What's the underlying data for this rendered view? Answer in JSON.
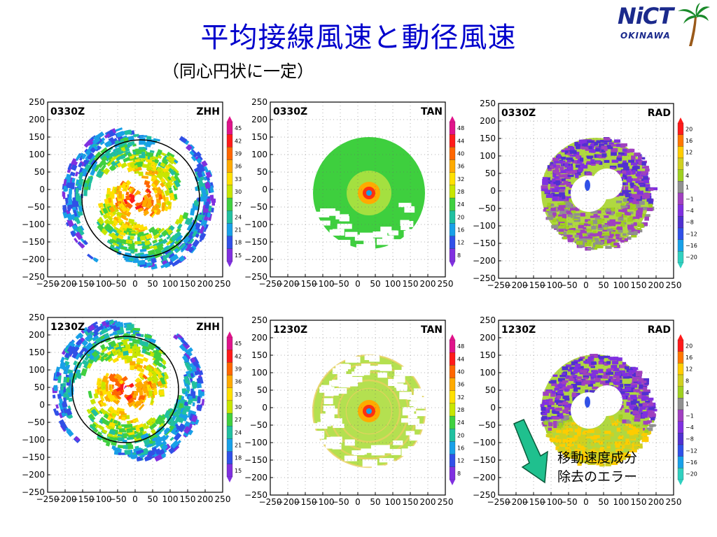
{
  "title": "平均接線風速と動径風速",
  "subtitle": "（同心円状に一定）",
  "logo": {
    "main": "NiCT",
    "sub": "OKINAWA"
  },
  "annotation": {
    "line1": "移動速度成分",
    "line2": "除去のエラー"
  },
  "colors": {
    "title": "#0000cc",
    "arrow_fill": "#1fc08e",
    "arrow_stroke": "#0a5a3a",
    "logo": "#1b2a8c",
    "palm": "#1a8a2a",
    "trunk": "#9a5a1a"
  },
  "axis": {
    "y_ticks": [
      "250",
      "200",
      "150",
      "100",
      "50",
      "0",
      "−50",
      "−100",
      "−150",
      "−200",
      "−250"
    ],
    "x_ticks": [
      "−250",
      "−200",
      "−150",
      "−100",
      "−50",
      "0",
      "50",
      "100",
      "150",
      "200",
      "250"
    ]
  },
  "colorbars": {
    "ZHH": [
      "45",
      "42",
      "39",
      "36",
      "33",
      "30",
      "27",
      "24",
      "21",
      "18",
      "15"
    ],
    "TAN": [
      "48",
      "44",
      "40",
      "36",
      "32",
      "28",
      "24",
      "20",
      "16",
      "12",
      "8"
    ],
    "RAD": [
      "20",
      "16",
      "12",
      "8",
      "4",
      "1",
      "−1",
      "−4",
      "−8",
      "−12",
      "−16",
      "−20"
    ]
  },
  "panels": [
    {
      "time": "0330Z",
      "var": "ZHH"
    },
    {
      "time": "0330Z",
      "var": "TAN"
    },
    {
      "time": "0330Z",
      "var": "RAD"
    },
    {
      "time": "1230Z",
      "var": "ZHH"
    },
    {
      "time": "1230Z",
      "var": "TAN"
    },
    {
      "time": "1230Z",
      "var": "RAD"
    }
  ]
}
